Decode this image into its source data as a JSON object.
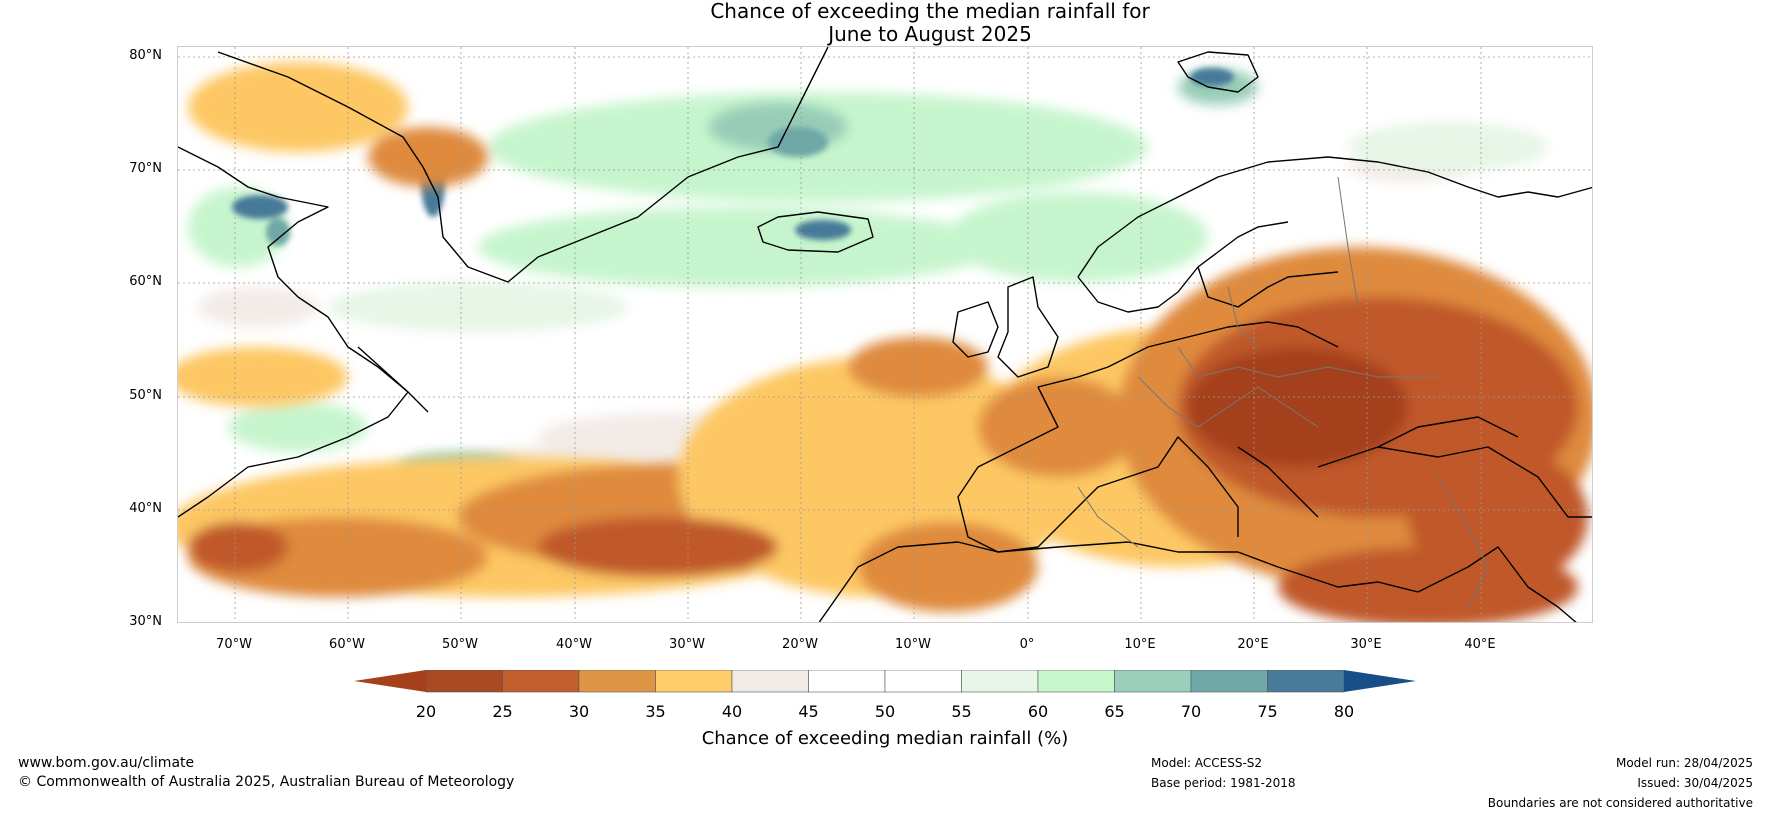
{
  "title": {
    "line1": "Chance of exceeding the median rainfall for",
    "line2": "June to August 2025"
  },
  "map": {
    "lat_labels": [
      "80°N",
      "70°N",
      "60°N",
      "50°N",
      "40°N",
      "30°N"
    ],
    "lon_labels": [
      "70°W",
      "60°W",
      "50°W",
      "40°W",
      "30°W",
      "20°W",
      "10°W",
      "0°",
      "10°E",
      "20°E",
      "30°E",
      "40°E"
    ],
    "colors": {
      "background_white": "#ffffff",
      "low_20": "#a53f1c",
      "low_25": "#c0592b",
      "low_30": "#df8a3e",
      "low_35": "#fdc764",
      "near_40": "#f1e9e5",
      "near_45": "#ffffff",
      "near_55": "#e7f5e7",
      "high_60": "#c6f5cd",
      "high_65": "#97cdb7",
      "high_70": "#6fa7a7",
      "high_75": "#477a99",
      "high_80": "#174e86",
      "coastline": "#000000",
      "borders": "#777777"
    }
  },
  "colorbar": {
    "ticks": [
      "20",
      "25",
      "30",
      "35",
      "40",
      "45",
      "50",
      "55",
      "60",
      "65",
      "70",
      "75",
      "80"
    ],
    "segment_colors": [
      "#a84a24",
      "#c45e2d",
      "#e09446",
      "#fecc69",
      "#f1ebe7",
      "#ffffff",
      "#ffffff",
      "#e8f6e9",
      "#c8f6cd",
      "#9bcfbb",
      "#6fa8a9",
      "#477b99"
    ],
    "under_color": "#a53f1c",
    "over_color": "#174e86",
    "label": "Chance of exceeding median rainfall (%)"
  },
  "footer": {
    "website": "www.bom.gov.au/climate",
    "copyright": "© Commonwealth of Australia 2025, Australian Bureau of Meteorology",
    "model": "Model: ACCESS-S2",
    "base_period": "Base period: 1981-2018",
    "model_run": "Model run: 28/04/2025",
    "issued": "Issued: 30/04/2025",
    "disclaimer": "Boundaries are not considered authoritative"
  }
}
